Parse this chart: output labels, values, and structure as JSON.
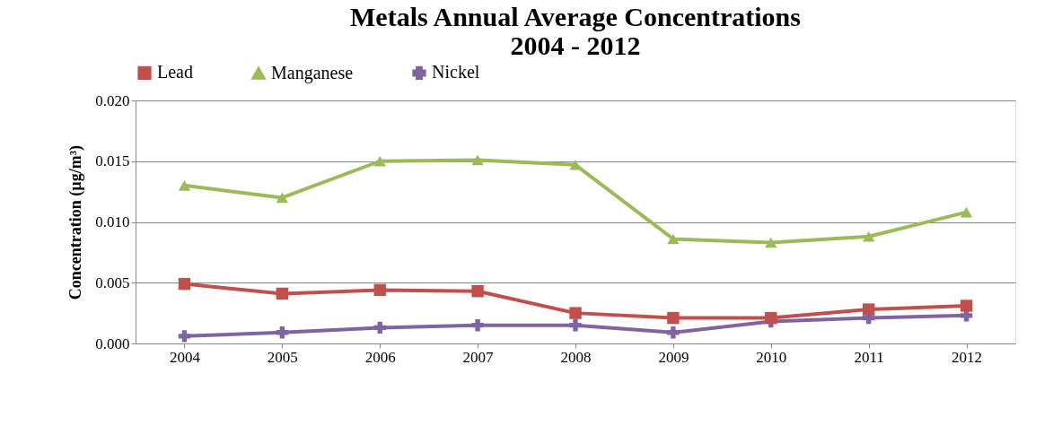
{
  "chart_data": {
    "type": "line",
    "title": "Metals Annual Average Concentrations\n2004 - 2012",
    "ylabel": "Concentration (µg/m³)",
    "categories": [
      "2004",
      "2005",
      "2006",
      "2007",
      "2008",
      "2009",
      "2010",
      "2011",
      "2012"
    ],
    "series": [
      {
        "name": "Lead",
        "color": "#c0504d",
        "marker": "square",
        "values": [
          0.0049,
          0.0041,
          0.0044,
          0.0043,
          0.0025,
          0.0021,
          0.0021,
          0.0028,
          0.0031
        ]
      },
      {
        "name": "Manganese",
        "color": "#9bbb59",
        "marker": "triangle",
        "values": [
          0.013,
          0.012,
          0.015,
          0.0151,
          0.0147,
          0.0086,
          0.0083,
          0.0088,
          0.0108
        ]
      },
      {
        "name": "Nickel",
        "color": "#8064a2",
        "marker": "cross",
        "values": [
          0.0006,
          0.0009,
          0.0013,
          0.0015,
          0.0015,
          0.0009,
          0.0018,
          0.0021,
          0.0023
        ]
      }
    ],
    "ylim": [
      0,
      0.02
    ],
    "yticks": [
      {
        "value": 0,
        "label": "0.000"
      },
      0.005,
      {
        "value": 0.01,
        "label": "0.010"
      },
      0.015,
      {
        "value": 0.02,
        "label": "0.020"
      }
    ],
    "grid": "y",
    "legend": "top",
    "line_style": "solid"
  }
}
